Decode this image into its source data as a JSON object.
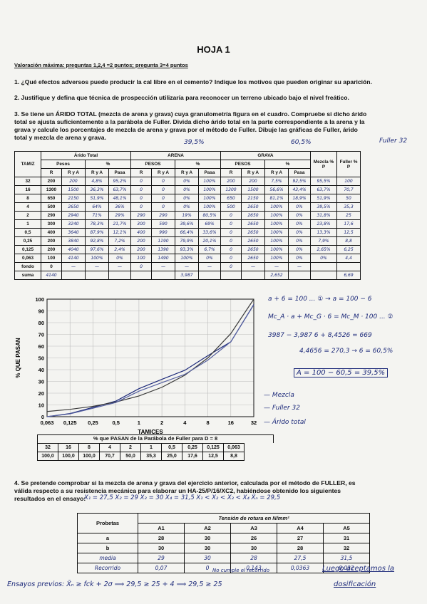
{
  "header": {
    "title": "HOJA 1",
    "valuation": "Valoración máxima: preguntas 1,2,4 =2 puntos; pregunta 3=4 puntos"
  },
  "questions": {
    "q1": "1. ¿Qué efectos adversos puede producir la cal libre en el cemento? Indique los motivos que pueden originar su aparición.",
    "q2": "2. Justifique y defina que técnica de prospección utilizaría para reconocer un terreno ubicado bajo el nivel freático.",
    "q3_l1": "3. Se tiene un ÁRIDO TOTAL (mezcla de arena y grava) cuya granulometría figura en el cuadro. Compruebe si dicho árido",
    "q3_l2": "total se ajusta suficientemente a la parábola de Fuller. Divida dicho árido total en la parte correspondiente a la arena y la",
    "q3_l3": "grava y calcule los porcentajes de mezcla de arena y grava por el método de Fuller. Dibuje las gráficas de Fuller, árido",
    "q3_l4": "total y mezcla de arena y grava.",
    "q4_l1": "4. Se pretende comprobar si la mezcla de arena y grava del ejercicio anterior, calculada por el método de FULLER, es",
    "q4_l2": "válida respecto a su resistencia mecánica para elaborar un HA-25/P/16/XC2, habiéndose obtenido los siguientes",
    "q4_l3": "resultados en el ensayo:"
  },
  "gran_table": {
    "h_tamiz": "TAMIZ",
    "h_arido": "Árido Total",
    "h_arena": "ARENA",
    "h_grava": "GRAVA",
    "h_mezcla": "Mezcla % P",
    "h_fuller": "Fuller % P",
    "h_pesos": "Pesos",
    "h_pct": "%",
    "h_PESOS": "PESOS",
    "h_R": "R",
    "h_RyA": "R y A",
    "h_Pasa": "Pasa",
    "rows": [
      {
        "t": "32",
        "r": "200",
        "ar": [
          "200",
          "4,8%",
          "95,2%",
          "0",
          "0",
          "0%",
          "100%",
          "200",
          "200",
          "7,5%",
          "92,5%",
          "95,5%",
          "100"
        ]
      },
      {
        "t": "16",
        "r": "1300",
        "ar": [
          "1500",
          "36,3%",
          "63,7%",
          "0",
          "0",
          "0%",
          "100%",
          "1300",
          "1500",
          "56,6%",
          "43,4%",
          "63,7%",
          "70,7"
        ]
      },
      {
        "t": "8",
        "r": "650",
        "ar": [
          "2150",
          "51,9%",
          "48,1%",
          "0",
          "0",
          "0%",
          "100%",
          "650",
          "2150",
          "81,1%",
          "18,9%",
          "51,9%",
          "50"
        ]
      },
      {
        "t": "4",
        "r": "500",
        "ar": [
          "2650",
          "64%",
          "36%",
          "0",
          "0",
          "0%",
          "100%",
          "500",
          "2650",
          "100%",
          "0%",
          "39,5%",
          "35,3"
        ]
      },
      {
        "t": "2",
        "r": "290",
        "ar": [
          "2940",
          "71%",
          "29%",
          "290",
          "290",
          "19%",
          "80,5%",
          "0",
          "2650",
          "100%",
          "0%",
          "31,8%",
          "25"
        ]
      },
      {
        "t": "1",
        "r": "300",
        "ar": [
          "3240",
          "78,3%",
          "21,7%",
          "300",
          "590",
          "39,6%",
          "69%",
          "0",
          "2650",
          "100%",
          "0%",
          "23,8%",
          "17,6"
        ]
      },
      {
        "t": "0,5",
        "r": "400",
        "ar": [
          "3640",
          "87,9%",
          "12,1%",
          "400",
          "990",
          "66,4%",
          "33,6%",
          "0",
          "2650",
          "100%",
          "0%",
          "13,3%",
          "12,5"
        ]
      },
      {
        "t": "0,25",
        "r": "200",
        "ar": [
          "3840",
          "92,8%",
          "7,2%",
          "200",
          "1190",
          "79,9%",
          "20,1%",
          "0",
          "2650",
          "100%",
          "0%",
          "7,9%",
          "8,8"
        ]
      },
      {
        "t": "0,125",
        "r": "200",
        "ar": [
          "4040",
          "97,6%",
          "2,4%",
          "200",
          "1390",
          "93,3%",
          "6,7%",
          "0",
          "2650",
          "100%",
          "0%",
          "2,65%",
          "6,25"
        ]
      },
      {
        "t": "0,063",
        "r": "100",
        "ar": [
          "4140",
          "100%",
          "0%",
          "100",
          "1490",
          "100%",
          "0%",
          "0",
          "2650",
          "100%",
          "0%",
          "0%",
          "4,4"
        ]
      },
      {
        "t": "fondo",
        "r": "0",
        "ar": [
          "—",
          "—",
          "—",
          "0",
          "—",
          "—",
          "—",
          "0",
          "—",
          "—",
          "—",
          "",
          ""
        ]
      }
    ],
    "suma_label": "suma",
    "suma_total": "4140",
    "suma_arena": "3,987",
    "suma_grava": "2,652",
    "suma_fuller": "6,69"
  },
  "annotations": {
    "arena_pct": "39,5%",
    "grava_pct": "60,5%",
    "fuller_label": "Fuller 32",
    "eq1": "a + 6 = 100 ... ①   → a = 100 − 6",
    "eq2": "Mc_A · a + Mc_G · 6 = Mc_M · 100 ... ②",
    "eq3": "3987 − 3,987 6 + 8,4526 = 669",
    "eq4": "4,4656 = 270,3 → 6 = 60,5%",
    "eq5": "A = 100 − 60,5 = 39,5%",
    "leg_mezcla": "— Mezcla",
    "leg_fuller": "— Fuller 32",
    "leg_arido": "— Árido total",
    "ensayo_vals": "X₁ = 27,5   X₂ = 29   X₃ = 30   X₄ = 31,5   X₁ < X₂ < X₃ < X₄   X̄ₙ = 29,5",
    "no_cumple": "No cumple el recorrido",
    "luego": "Luego aceptamos la",
    "dosificacion": "dosificación",
    "ensayos_previos": "Ensayos previos: X̄ₙ ≥ fck + 2σ ⟹ 29,5 ≥ 25 + 4 ⟹ 29,5 ≥ 25"
  },
  "chart_data": {
    "type": "line",
    "ylabel": "% QUE PASAN",
    "xlabel": "TAMICES",
    "categories": [
      "0,063",
      "0,125",
      "0,25",
      "0,5",
      "1",
      "2",
      "4",
      "8",
      "16",
      "32"
    ],
    "ylim": [
      0,
      100
    ],
    "yticks": [
      0,
      10,
      20,
      30,
      40,
      50,
      60,
      70,
      80,
      90,
      100
    ],
    "series": [
      {
        "name": "Mezcla",
        "values": [
          0,
          2.65,
          7.9,
          13.3,
          23.8,
          31.8,
          39.5,
          51.9,
          63.7,
          95.5
        ]
      },
      {
        "name": "Fuller 32",
        "values": [
          4.4,
          6.25,
          8.8,
          12.5,
          17.6,
          25,
          35.3,
          50,
          70.7,
          100
        ]
      },
      {
        "name": "Árido total",
        "values": [
          0,
          2.4,
          7.2,
          12.1,
          21.7,
          29,
          36,
          48.1,
          63.7,
          95.2
        ]
      }
    ],
    "colors": [
      "#1d2a7a",
      "#3a3a3a",
      "#5560a0"
    ]
  },
  "fuller_table": {
    "title": "% que PASAN de la Parábola de Fuller para D = 8",
    "sizes": [
      "32",
      "16",
      "8",
      "4",
      "2",
      "1",
      "0,5",
      "0,25",
      "0,125",
      "0,063"
    ],
    "values": [
      "100,0",
      "100,0",
      "100,0",
      "70,7",
      "50,0",
      "35,3",
      "25,0",
      "17,6",
      "12,5",
      "8,8"
    ]
  },
  "tension_table": {
    "h_probetas": "Probetas",
    "h_tension": "Tensión de rotura en N/mm²",
    "cols": [
      "A1",
      "A2",
      "A3",
      "A4",
      "A5"
    ],
    "rows": [
      {
        "label": "a",
        "vals": [
          "28",
          "30",
          "26",
          "27",
          "31"
        ]
      },
      {
        "label": "b",
        "vals": [
          "30",
          "30",
          "30",
          "28",
          "32"
        ]
      },
      {
        "label": "media",
        "vals": [
          "29",
          "30",
          "28",
          "27,5",
          "31,5"
        ]
      },
      {
        "label": "Recorrido",
        "vals": [
          "0,07",
          "0",
          "0,143",
          "0,0363",
          "0,032"
        ]
      }
    ]
  }
}
